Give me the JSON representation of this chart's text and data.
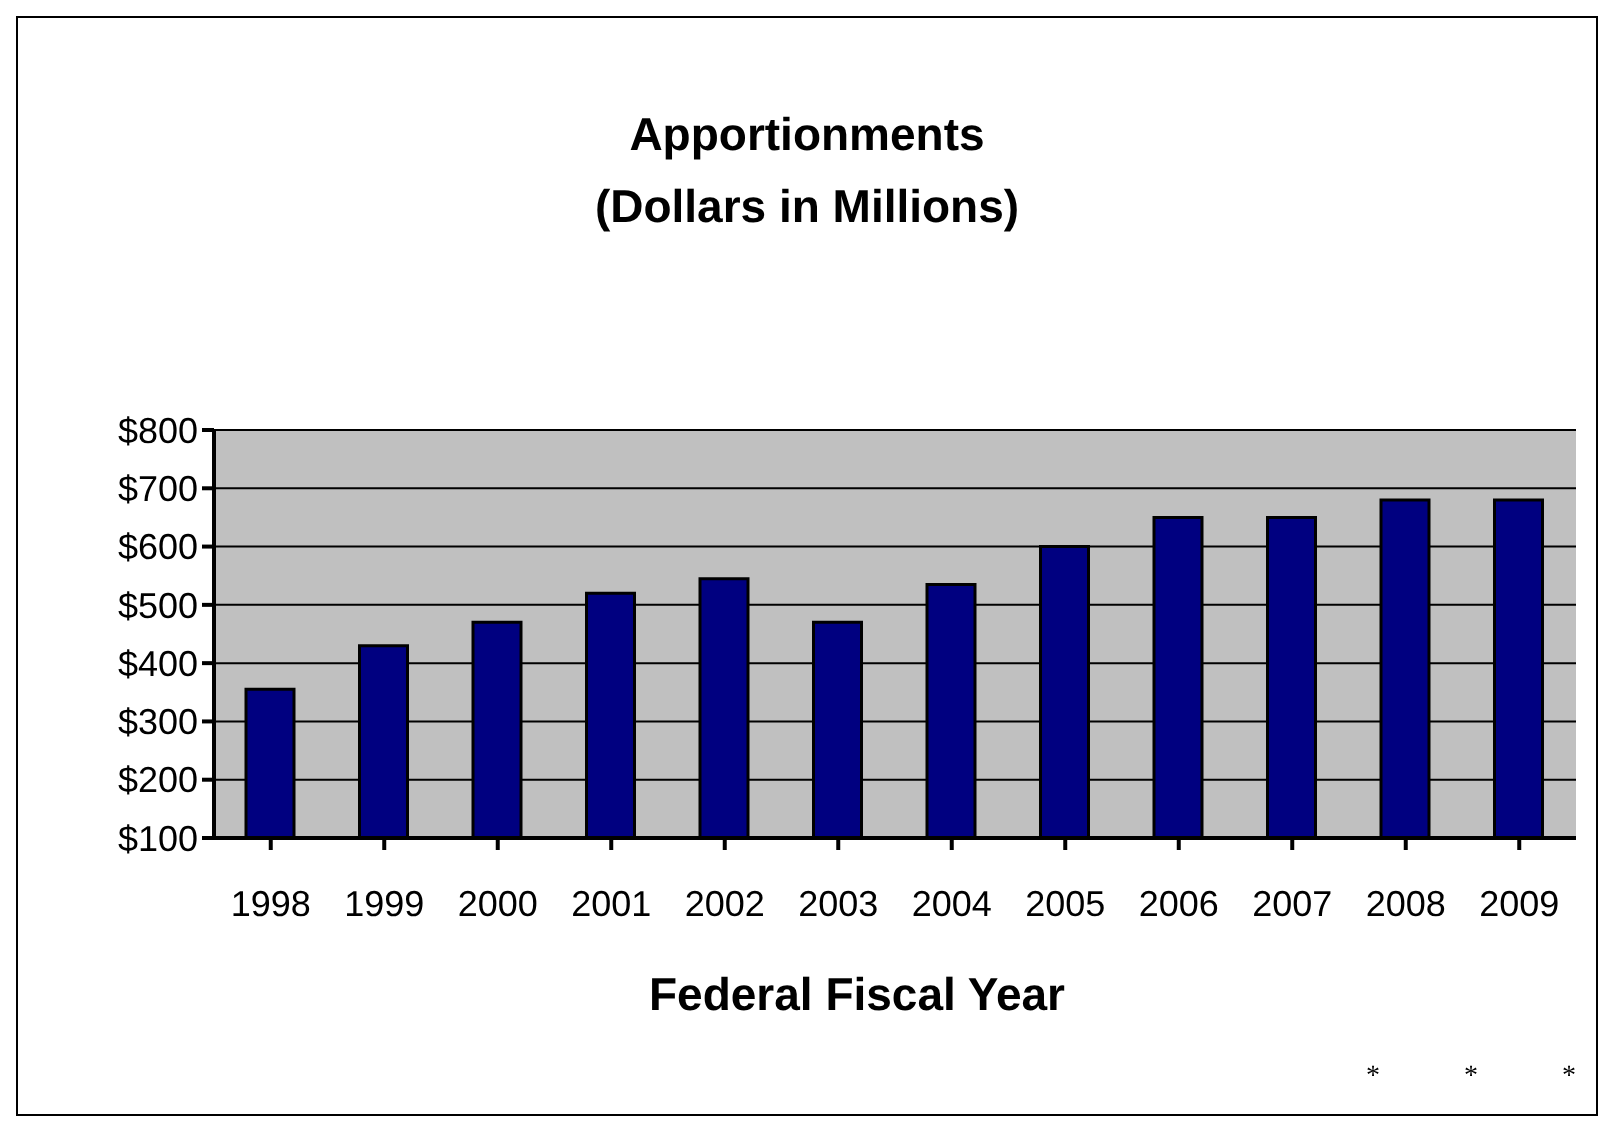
{
  "chart_data": {
    "type": "bar",
    "title": "Apportionments",
    "subtitle": "(Dollars in Millions)",
    "xlabel": "Federal Fiscal Year",
    "categories": [
      "1998",
      "1999",
      "2000",
      "2001",
      "2002",
      "2003",
      "2004",
      "2005",
      "2006",
      "2007",
      "2008",
      "2009"
    ],
    "values": [
      355,
      430,
      470,
      520,
      545,
      470,
      535,
      600,
      650,
      650,
      680,
      680
    ],
    "color": "#000080",
    "ylim": [
      100,
      800
    ],
    "yticks": [
      {
        "value": 100,
        "label": "$100"
      },
      {
        "value": 200,
        "label": "$200"
      },
      {
        "value": 300,
        "label": "$300"
      },
      {
        "value": 400,
        "label": "$400"
      },
      {
        "value": 500,
        "label": "$500"
      },
      {
        "value": 600,
        "label": "$600"
      },
      {
        "value": 700,
        "label": "$700"
      },
      {
        "value": 800,
        "label": "$800"
      }
    ],
    "grid": "y",
    "annotations": [
      "*            *            *"
    ]
  }
}
